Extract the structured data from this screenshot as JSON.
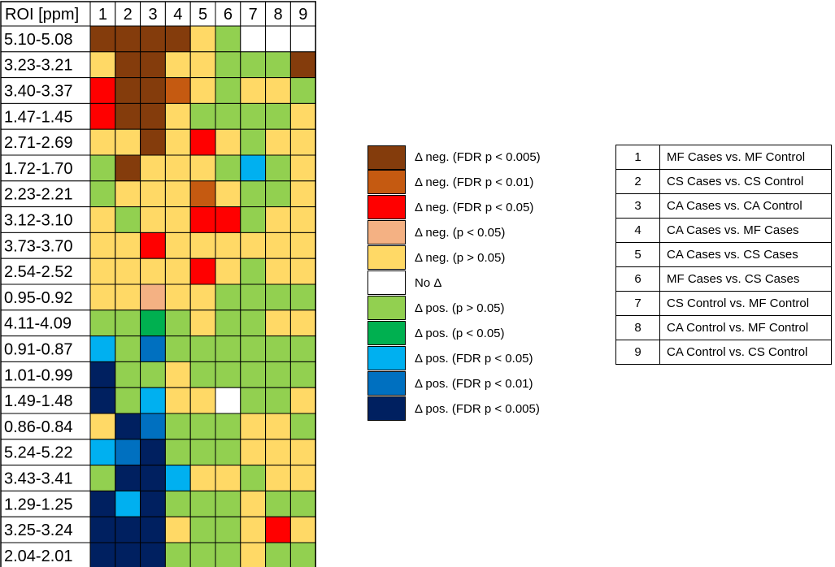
{
  "chart_data": {
    "type": "heatmap",
    "title": "",
    "corner_header": "ROI [ppm]",
    "columns": [
      "1",
      "2",
      "3",
      "4",
      "5",
      "6",
      "7",
      "8",
      "9"
    ],
    "rows": [
      "5.10-5.08",
      "3.23-3.21",
      "3.40-3.37",
      "1.47-1.45",
      "2.71-2.69",
      "1.72-1.70",
      "2.23-2.21",
      "3.12-3.10",
      "3.73-3.70",
      "2.54-2.52",
      "0.95-0.92",
      "4.11-4.09",
      "0.91-0.87",
      "1.01-0.99",
      "1.49-1.48",
      "0.86-0.84",
      "5.24-5.22",
      "3.43-3.41",
      "1.29-1.25",
      "3.25-3.24",
      "2.04-2.01"
    ],
    "categories": [
      {
        "code": "a",
        "label": "Δ neg. (FDR p < 0.005)",
        "color": "#843C0C"
      },
      {
        "code": "b",
        "label": "Δ neg. (FDR p < 0.01)",
        "color": "#C55A11"
      },
      {
        "code": "c",
        "label": "Δ neg. (FDR p < 0.05)",
        "color": "#FF0000"
      },
      {
        "code": "d",
        "label": "Δ neg. (p < 0.05)",
        "color": "#F4B183"
      },
      {
        "code": "e",
        "label": "Δ neg. (p > 0.05)",
        "color": "#FFD966"
      },
      {
        "code": "f",
        "label": "No Δ",
        "color": "#FFFFFF"
      },
      {
        "code": "g",
        "label": "Δ pos. (p > 0.05)",
        "color": "#92D050"
      },
      {
        "code": "h",
        "label": "Δ pos. (p < 0.05)",
        "color": "#00B050"
      },
      {
        "code": "i",
        "label": "Δ pos. (FDR p < 0.05)",
        "color": "#00B0F0"
      },
      {
        "code": "j",
        "label": "Δ pos. (FDR p < 0.01)",
        "color": "#0070C0"
      },
      {
        "code": "k",
        "label": "Δ pos. (FDR p < 0.005)",
        "color": "#002060"
      }
    ],
    "cells": [
      [
        "a",
        "a",
        "a",
        "a",
        "e",
        "g",
        "f",
        "f",
        "f"
      ],
      [
        "e",
        "a",
        "a",
        "e",
        "e",
        "g",
        "g",
        "g",
        "a"
      ],
      [
        "c",
        "a",
        "a",
        "b",
        "e",
        "g",
        "e",
        "e",
        "g"
      ],
      [
        "c",
        "a",
        "a",
        "e",
        "g",
        "g",
        "g",
        "g",
        "e"
      ],
      [
        "e",
        "e",
        "a",
        "e",
        "c",
        "e",
        "g",
        "e",
        "e"
      ],
      [
        "g",
        "a",
        "e",
        "e",
        "e",
        "g",
        "i",
        "g",
        "e"
      ],
      [
        "g",
        "e",
        "e",
        "e",
        "b",
        "e",
        "g",
        "g",
        "e"
      ],
      [
        "e",
        "g",
        "e",
        "e",
        "c",
        "c",
        "g",
        "e",
        "e"
      ],
      [
        "e",
        "e",
        "c",
        "e",
        "e",
        "e",
        "e",
        "e",
        "e"
      ],
      [
        "e",
        "e",
        "e",
        "e",
        "c",
        "e",
        "g",
        "e",
        "e"
      ],
      [
        "e",
        "e",
        "d",
        "e",
        "e",
        "g",
        "g",
        "g",
        "g"
      ],
      [
        "g",
        "g",
        "h",
        "g",
        "e",
        "g",
        "g",
        "e",
        "e"
      ],
      [
        "i",
        "g",
        "j",
        "g",
        "g",
        "g",
        "g",
        "g",
        "g"
      ],
      [
        "k",
        "g",
        "g",
        "e",
        "g",
        "g",
        "g",
        "g",
        "g"
      ],
      [
        "k",
        "g",
        "i",
        "e",
        "e",
        "f",
        "g",
        "g",
        "e"
      ],
      [
        "e",
        "k",
        "j",
        "g",
        "g",
        "g",
        "e",
        "e",
        "g"
      ],
      [
        "i",
        "j",
        "k",
        "g",
        "g",
        "g",
        "e",
        "e",
        "e"
      ],
      [
        "g",
        "k",
        "k",
        "i",
        "e",
        "e",
        "g",
        "e",
        "e"
      ],
      [
        "k",
        "i",
        "k",
        "g",
        "g",
        "g",
        "e",
        "g",
        "g"
      ],
      [
        "k",
        "k",
        "k",
        "e",
        "g",
        "g",
        "e",
        "c",
        "e"
      ],
      [
        "k",
        "k",
        "k",
        "g",
        "g",
        "g",
        "e",
        "g",
        "g"
      ]
    ],
    "comparisons": [
      {
        "number": "1",
        "label": "MF Cases vs. MF Control"
      },
      {
        "number": "2",
        "label": "CS Cases vs. CS Control"
      },
      {
        "number": "3",
        "label": "CA Cases vs. CA Control"
      },
      {
        "number": "4",
        "label": "CA Cases vs. MF Cases"
      },
      {
        "number": "5",
        "label": "CA Cases vs. CS Cases"
      },
      {
        "number": "6",
        "label": "MF Cases vs. CS Cases"
      },
      {
        "number": "7",
        "label": "CS Control vs. MF Control"
      },
      {
        "number": "8",
        "label": "CA Control vs. MF Control"
      },
      {
        "number": "9",
        "label": "CA Control vs. CS Control"
      }
    ]
  }
}
